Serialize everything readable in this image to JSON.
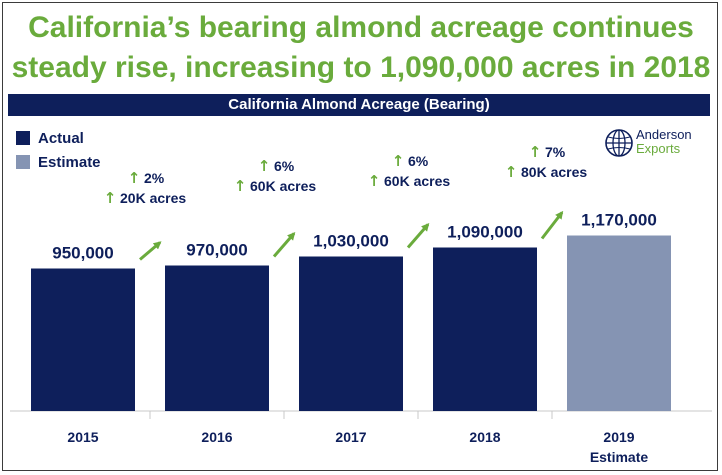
{
  "headline": {
    "line1": "California’s bearing almond acreage continues",
    "line2": "steady rise, increasing to 1,090,000 acres in 2018"
  },
  "logo": {
    "line1": "Anderson",
    "line2": "Exports",
    "icon": "globe-icon"
  },
  "colors": {
    "headline": "#6aab3c",
    "actual": "#0e1f5b",
    "estimate": "#8594b3",
    "arrow": "#6aab3c",
    "titlebar": "#0e1f5b"
  },
  "chart_data": {
    "type": "bar",
    "title": "California Almond Acreage (Bearing)",
    "categories": [
      "2015",
      "2016",
      "2017",
      "2018",
      "2019"
    ],
    "category_sublabels": [
      "",
      "",
      "",
      "",
      "Estimate"
    ],
    "values": [
      950000,
      970000,
      1030000,
      1090000,
      1170000
    ],
    "value_labels": [
      "950,000",
      "970,000",
      "1,030,000",
      "1,090,000",
      "1,170,000"
    ],
    "series_type": [
      "actual",
      "actual",
      "actual",
      "actual",
      "estimate"
    ],
    "legend": [
      {
        "name": "Actual",
        "key": "actual"
      },
      {
        "name": "Estimate",
        "key": "estimate"
      }
    ],
    "legend_position": "top-left",
    "grid": false,
    "changes": [
      {
        "from": "2015",
        "to": "2016",
        "pct": "2%",
        "acres": "20K acres"
      },
      {
        "from": "2016",
        "to": "2017",
        "pct": "6%",
        "acres": "60K acres"
      },
      {
        "from": "2017",
        "to": "2018",
        "pct": "6%",
        "acres": "60K acres"
      },
      {
        "from": "2018",
        "to": "2019",
        "pct": "7%",
        "acres": "80K acres"
      }
    ]
  }
}
